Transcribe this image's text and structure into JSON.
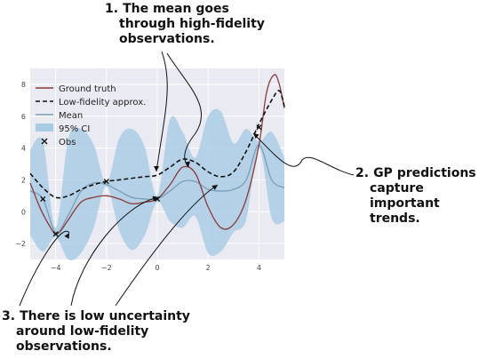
{
  "callouts": [
    {
      "number": "1.",
      "lines": [
        "The mean goes",
        "through high-fidelity",
        "observations."
      ]
    },
    {
      "number": "2.",
      "lines": [
        "GP predictions",
        "capture important",
        "trends."
      ]
    },
    {
      "number": "3.",
      "lines": [
        "There is low uncertainty",
        "around low-fidelity",
        "observations."
      ]
    }
  ],
  "chart_data": {
    "type": "line",
    "title": "",
    "xlabel": "",
    "ylabel": "",
    "xlim": [
      -5,
      5
    ],
    "ylim": [
      -3,
      9
    ],
    "x_ticks": [
      -4,
      -2,
      0,
      2,
      4
    ],
    "y_ticks": [
      -2,
      0,
      2,
      4,
      6,
      8
    ],
    "grid": true,
    "background": "#eaeaf2",
    "legend": {
      "location": "top-left",
      "entries": [
        "Ground truth",
        "Low-fidelity approx.",
        "Mean",
        "95% CI",
        "Obs"
      ]
    },
    "series": [
      {
        "name": "Ground truth",
        "color": "#8b3a3a",
        "style": "solid",
        "x": [
          -5,
          -4.6,
          -4.2,
          -4,
          -3.8,
          -3.5,
          -3,
          -2.5,
          -2,
          -1.5,
          -1,
          -0.5,
          0,
          0.5,
          1,
          1.5,
          2,
          2.5,
          3,
          3.5,
          4,
          4.3,
          4.6,
          4.8,
          5
        ],
        "y": [
          1.8,
          0.2,
          -1.0,
          -1.4,
          -1.2,
          -0.5,
          0.6,
          0.9,
          1.0,
          0.8,
          0.5,
          0.6,
          0.8,
          1.7,
          2.8,
          2.4,
          0.3,
          -1.0,
          -0.8,
          0.8,
          4.2,
          7.5,
          8.6,
          8.0,
          6.5
        ]
      },
      {
        "name": "Low-fidelity approx.",
        "color": "#111111",
        "style": "dashed",
        "x": [
          -5,
          -4.5,
          -4,
          -3.5,
          -3,
          -2.5,
          -2,
          -1.5,
          -1,
          -0.5,
          0,
          0.5,
          1,
          1.5,
          2,
          2.5,
          3,
          3.5,
          4,
          4.5,
          4.8,
          5
        ],
        "y": [
          2.4,
          1.5,
          0.9,
          1.0,
          1.4,
          1.7,
          1.9,
          2.0,
          2.1,
          2.2,
          2.3,
          2.8,
          3.3,
          3.1,
          2.5,
          2.2,
          2.5,
          3.8,
          5.5,
          7.0,
          7.6,
          6.6
        ]
      },
      {
        "name": "Mean",
        "color": "#7a9cb8",
        "style": "solid",
        "x": [
          -5,
          -4.5,
          -4,
          -3.5,
          -3,
          -2.5,
          -2,
          -1.5,
          -1,
          -0.5,
          0,
          0.5,
          1,
          1.5,
          2,
          2.5,
          3,
          3.5,
          4,
          4.5,
          5
        ],
        "y": [
          1.3,
          0.8,
          -1.3,
          -0.2,
          1.3,
          1.8,
          1.7,
          1.3,
          0.9,
          0.8,
          0.8,
          1.3,
          1.9,
          1.9,
          1.4,
          1.3,
          1.4,
          2.0,
          4.2,
          2.0,
          1.5
        ]
      },
      {
        "name": "95% CI",
        "color": "#a8cbe4",
        "style": "band",
        "x": [
          -5,
          -4.5,
          -4,
          -3.5,
          -3,
          -2.5,
          -2,
          -1.5,
          -1,
          -0.5,
          0,
          0.5,
          1,
          1.5,
          2,
          2.5,
          3,
          3.5,
          4,
          4.5,
          5
        ],
        "lower": [
          -1.5,
          -2.5,
          -1.6,
          -3.0,
          -2.6,
          -1.0,
          1.6,
          -1.2,
          -2.4,
          -1.5,
          0.6,
          -0.6,
          -1.0,
          -0.3,
          -2.6,
          -2.5,
          -1.3,
          -0.5,
          4.0,
          -0.4,
          -0.6
        ],
        "upper": [
          3.9,
          4.4,
          -1.0,
          4.6,
          5.2,
          4.2,
          1.8,
          4.6,
          5.2,
          4.1,
          1.0,
          5.8,
          5.0,
          3.4,
          6.0,
          6.3,
          4.3,
          5.2,
          4.4,
          5.0,
          3.4
        ]
      },
      {
        "name": "Obs",
        "color": "#111111",
        "style": "marker",
        "x": [
          -4.5,
          -4,
          -2,
          0,
          4
        ],
        "y": [
          0.8,
          -1.4,
          1.9,
          0.8,
          5.3
        ]
      }
    ]
  }
}
